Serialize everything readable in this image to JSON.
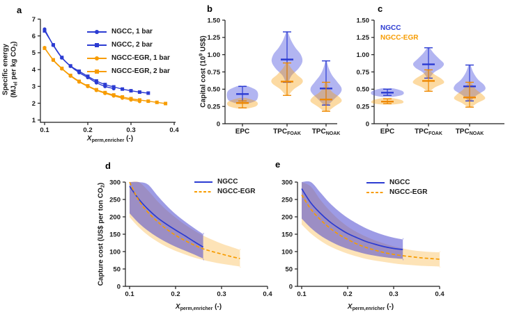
{
  "figure": {
    "kind": "five-panel scientific figure",
    "panel_letters": [
      "a",
      "b",
      "c",
      "d",
      "e"
    ]
  },
  "colors": {
    "ngcc_blue": "#2b3bd2",
    "egr_orange": "#f79c00",
    "orange_whisker": "#ee8800",
    "violin_blue_fill": "rgba(85,92,225,0.45)",
    "violin_orange_fill": "rgba(248,158,10,0.38)",
    "band_blue_fill": "rgba(76,72,208,0.55)",
    "band_orange_fill": "rgba(249,168,30,0.32)",
    "axis": "#1a1a1a"
  },
  "panels": {
    "a": {
      "label": "a"
    },
    "b": {
      "label": "b"
    },
    "c": {
      "label": "c",
      "legend": [
        "NGCC",
        "NGCC-EGR"
      ]
    },
    "d": {
      "label": "d"
    },
    "e": {
      "label": "e"
    }
  },
  "labels": {
    "a_ylabel_line1": [
      [
        "t",
        "Specific energy"
      ]
    ],
    "a_ylabel_line2": [
      [
        "t",
        "(MJ"
      ],
      [
        "s",
        "el"
      ],
      [
        "t",
        " per kg CO"
      ],
      [
        "s",
        "2"
      ],
      [
        "t",
        ")"
      ]
    ],
    "x_perm": [
      [
        "i",
        "X"
      ],
      [
        "s",
        "perm,enricher"
      ],
      [
        "t",
        " (-)"
      ]
    ],
    "b_ylabel": [
      [
        "t",
        "Capital cost (10"
      ],
      [
        "p",
        "9"
      ],
      [
        "t",
        " US$)"
      ]
    ],
    "d_ylabel": [
      [
        "t",
        "Capture cost (US$ per ton CO"
      ],
      [
        "s",
        "2"
      ],
      [
        "t",
        ")"
      ]
    ],
    "cat_epc": [
      [
        "t",
        "EPC"
      ]
    ],
    "cat_tpc_foak": [
      [
        "t",
        "TPC"
      ],
      [
        "s",
        "FOAK"
      ]
    ],
    "cat_tpc_noak": [
      [
        "t",
        "TPC"
      ],
      [
        "s",
        "NOAK"
      ]
    ]
  },
  "chart_data": [
    {
      "panel": "a",
      "type": "line",
      "title": "",
      "xlabel": "X_perm,enricher (-)",
      "ylabel": "Specific energy (MJ_el per kg CO2)",
      "xlim": [
        0.1,
        0.4
      ],
      "ylim": [
        1,
        7
      ],
      "xticks": [
        0.1,
        0.2,
        0.3,
        0.4
      ],
      "xtick_labels": [
        "0.1",
        "0.2",
        "0.3",
        "0.4"
      ],
      "yticks": [
        1,
        2,
        3,
        4,
        5,
        6,
        7
      ],
      "ytick_labels": [
        "1",
        "2",
        "3",
        "4",
        "5",
        "6",
        "7"
      ],
      "legend_position": "top-right-inside",
      "series": [
        {
          "name": "NGCC, 1 bar",
          "color": "ngcc_blue",
          "marker": "circle",
          "x": [
            0.1,
            0.12,
            0.14,
            0.16,
            0.18,
            0.2,
            0.22,
            0.24,
            0.26
          ],
          "y": [
            6.4,
            5.45,
            4.7,
            4.2,
            3.82,
            3.53,
            3.22,
            3.0,
            2.87
          ]
        },
        {
          "name": "NGCC, 2 bar",
          "color": "ngcc_blue",
          "marker": "square",
          "x": [
            0.1,
            0.12,
            0.14,
            0.16,
            0.18,
            0.2,
            0.22,
            0.24,
            0.26,
            0.28,
            0.3,
            0.32,
            0.34
          ],
          "y": [
            6.3,
            5.47,
            4.72,
            4.22,
            3.9,
            3.6,
            3.32,
            3.11,
            2.97,
            2.84,
            2.74,
            2.66,
            2.6
          ]
        },
        {
          "name": "NGCC-EGR, 1 bar",
          "color": "egr_orange",
          "marker": "circle",
          "x": [
            0.1,
            0.12,
            0.14,
            0.16,
            0.18,
            0.2,
            0.22,
            0.24,
            0.26,
            0.28,
            0.3,
            0.32
          ],
          "y": [
            5.3,
            4.56,
            4.05,
            3.62,
            3.27,
            3.0,
            2.77,
            2.59,
            2.44,
            2.31,
            2.2,
            2.11
          ]
        },
        {
          "name": "NGCC-EGR, 2 bar",
          "color": "egr_orange",
          "marker": "square",
          "x": [
            0.1,
            0.12,
            0.14,
            0.16,
            0.18,
            0.2,
            0.22,
            0.24,
            0.26,
            0.28,
            0.3,
            0.32,
            0.34,
            0.36,
            0.38
          ],
          "y": [
            5.27,
            4.58,
            4.07,
            3.65,
            3.3,
            3.03,
            2.8,
            2.63,
            2.49,
            2.37,
            2.27,
            2.19,
            2.12,
            2.05,
            1.98
          ]
        }
      ]
    },
    {
      "panel": "b",
      "type": "violin",
      "title": "",
      "ylabel": "Capital cost (10^9 US$)",
      "ylim": [
        0,
        1.5
      ],
      "yticks": [
        0,
        0.25,
        0.5,
        0.75,
        1.0,
        1.25,
        1.5
      ],
      "ytick_labels": [
        "0",
        "0.25",
        "0.50",
        "0.75",
        "1.00",
        "1.25",
        "1.50"
      ],
      "categories": [
        "EPC",
        "TPC_FOAK",
        "TPC_NOAK"
      ],
      "violins": [
        {
          "category": "EPC",
          "series": "NGCC",
          "whisker_min": 0.33,
          "whisker_max": 0.54,
          "median": 0.43,
          "profile": [
            [
              0.29,
              0.3
            ],
            [
              0.33,
              0.85
            ],
            [
              0.38,
              1.0
            ],
            [
              0.45,
              1.0
            ],
            [
              0.5,
              0.8
            ],
            [
              0.55,
              0.25
            ]
          ]
        },
        {
          "category": "EPC",
          "series": "NGCC-EGR",
          "whisker_min": 0.23,
          "whisker_max": 0.33,
          "median": 0.3,
          "profile": [
            [
              0.22,
              0.3
            ],
            [
              0.25,
              0.85
            ],
            [
              0.29,
              1.0
            ],
            [
              0.33,
              0.85
            ],
            [
              0.37,
              0.25
            ]
          ]
        },
        {
          "category": "TPC_FOAK",
          "series": "NGCC",
          "whisker_min": 0.6,
          "whisker_max": 1.33,
          "median": 0.93,
          "profile": [
            [
              0.6,
              0.08
            ],
            [
              0.7,
              0.3
            ],
            [
              0.8,
              0.75
            ],
            [
              0.9,
              1.0
            ],
            [
              1.0,
              0.9
            ],
            [
              1.1,
              0.55
            ],
            [
              1.2,
              0.28
            ],
            [
              1.33,
              0.05
            ]
          ]
        },
        {
          "category": "TPC_FOAK",
          "series": "NGCC-EGR",
          "whisker_min": 0.41,
          "whisker_max": 0.88,
          "median": 0.61,
          "profile": [
            [
              0.41,
              0.08
            ],
            [
              0.5,
              0.45
            ],
            [
              0.58,
              0.95
            ],
            [
              0.64,
              1.0
            ],
            [
              0.71,
              0.65
            ],
            [
              0.8,
              0.28
            ],
            [
              0.88,
              0.06
            ]
          ]
        },
        {
          "category": "TPC_NOAK",
          "series": "NGCC",
          "whisker_min": 0.27,
          "whisker_max": 0.91,
          "median": 0.51,
          "profile": [
            [
              0.27,
              0.12
            ],
            [
              0.35,
              0.5
            ],
            [
              0.45,
              0.95
            ],
            [
              0.52,
              1.0
            ],
            [
              0.6,
              0.75
            ],
            [
              0.7,
              0.4
            ],
            [
              0.8,
              0.18
            ],
            [
              0.91,
              0.04
            ]
          ]
        },
        {
          "category": "TPC_NOAK",
          "series": "NGCC-EGR",
          "whisker_min": 0.18,
          "whisker_max": 0.6,
          "median": 0.35,
          "profile": [
            [
              0.18,
              0.12
            ],
            [
              0.25,
              0.55
            ],
            [
              0.32,
              1.0
            ],
            [
              0.38,
              0.9
            ],
            [
              0.45,
              0.45
            ],
            [
              0.52,
              0.2
            ],
            [
              0.6,
              0.06
            ]
          ]
        }
      ]
    },
    {
      "panel": "c",
      "type": "violin",
      "title": "",
      "ylabel": "",
      "ylim": [
        0,
        1.5
      ],
      "yticks": [
        0,
        0.25,
        0.5,
        0.75,
        1.0,
        1.25,
        1.5
      ],
      "ytick_labels": [
        "0",
        "0.25",
        "0.50",
        "0.75",
        "1.00",
        "1.25",
        "1.50"
      ],
      "categories": [
        "EPC",
        "TPC_FOAK",
        "TPC_NOAK"
      ],
      "legend": [
        "NGCC",
        "NGCC-EGR"
      ],
      "legend_position": "top-left-inside",
      "violins": [
        {
          "category": "EPC",
          "series": "NGCC",
          "whisker_min": 0.41,
          "whisker_max": 0.5,
          "median": 0.45,
          "profile": [
            [
              0.39,
              0.4
            ],
            [
              0.42,
              1.0
            ],
            [
              0.47,
              1.0
            ],
            [
              0.51,
              0.4
            ]
          ]
        },
        {
          "category": "EPC",
          "series": "NGCC-EGR",
          "whisker_min": 0.29,
          "whisker_max": 0.36,
          "median": 0.32,
          "profile": [
            [
              0.28,
              0.4
            ],
            [
              0.3,
              1.0
            ],
            [
              0.34,
              0.95
            ],
            [
              0.37,
              0.35
            ]
          ]
        },
        {
          "category": "TPC_FOAK",
          "series": "NGCC",
          "whisker_min": 0.66,
          "whisker_max": 1.1,
          "median": 0.86,
          "profile": [
            [
              0.66,
              0.08
            ],
            [
              0.74,
              0.35
            ],
            [
              0.81,
              0.85
            ],
            [
              0.87,
              1.0
            ],
            [
              0.94,
              0.7
            ],
            [
              1.02,
              0.35
            ],
            [
              1.1,
              0.07
            ]
          ]
        },
        {
          "category": "TPC_FOAK",
          "series": "NGCC-EGR",
          "whisker_min": 0.47,
          "whisker_max": 0.78,
          "median": 0.62,
          "profile": [
            [
              0.47,
              0.08
            ],
            [
              0.53,
              0.45
            ],
            [
              0.59,
              1.0
            ],
            [
              0.65,
              0.85
            ],
            [
              0.72,
              0.35
            ],
            [
              0.78,
              0.08
            ]
          ]
        },
        {
          "category": "TPC_NOAK",
          "series": "NGCC",
          "whisker_min": 0.33,
          "whisker_max": 0.85,
          "median": 0.54,
          "profile": [
            [
              0.33,
              0.08
            ],
            [
              0.41,
              0.45
            ],
            [
              0.49,
              1.0
            ],
            [
              0.56,
              0.95
            ],
            [
              0.64,
              0.55
            ],
            [
              0.74,
              0.25
            ],
            [
              0.85,
              0.06
            ]
          ]
        },
        {
          "category": "TPC_NOAK",
          "series": "NGCC-EGR",
          "whisker_min": 0.24,
          "whisker_max": 0.6,
          "median": 0.38,
          "profile": [
            [
              0.24,
              0.1
            ],
            [
              0.3,
              0.5
            ],
            [
              0.36,
              1.0
            ],
            [
              0.42,
              0.85
            ],
            [
              0.5,
              0.4
            ],
            [
              0.6,
              0.08
            ]
          ]
        }
      ]
    },
    {
      "panel": "d",
      "type": "band-line",
      "title": "",
      "xlabel": "X_perm,enricher (-)",
      "ylabel": "Capture cost (US$ per ton CO2)",
      "xlim": [
        0.1,
        0.4
      ],
      "ylim": [
        0,
        300
      ],
      "xticks": [
        0.1,
        0.2,
        0.3,
        0.4
      ],
      "xtick_labels": [
        "0.1",
        "0.2",
        "0.3",
        "0.4"
      ],
      "yticks": [
        0,
        50,
        100,
        150,
        200,
        250,
        300
      ],
      "ytick_labels": [
        "0",
        "50",
        "100",
        "150",
        "200",
        "250",
        "300"
      ],
      "legend_position": "top-right-inside",
      "series": [
        {
          "name": "NGCC",
          "color": "ngcc_blue",
          "style": "solid",
          "x": [
            0.1,
            0.12,
            0.14,
            0.16,
            0.18,
            0.2,
            0.22,
            0.24,
            0.26
          ],
          "median": [
            288,
            251,
            222,
            198,
            179,
            162,
            146,
            129,
            113
          ],
          "upper": [
            300,
            300,
            293,
            262,
            233,
            208,
            187,
            168,
            150
          ],
          "lower": [
            210,
            182,
            160,
            142,
            127,
            114,
            103,
            92,
            80
          ]
        },
        {
          "name": "NGCC-EGR",
          "color": "egr_orange",
          "style": "dashed",
          "x": [
            0.1,
            0.12,
            0.14,
            0.16,
            0.18,
            0.2,
            0.22,
            0.24,
            0.26,
            0.28,
            0.3,
            0.32,
            0.34
          ],
          "median": [
            300,
            247,
            213,
            187,
            165,
            147,
            132,
            119,
            108,
            100,
            93,
            86,
            80
          ],
          "upper": [
            300,
            300,
            276,
            246,
            220,
            198,
            178,
            161,
            146,
            134,
            123,
            114,
            105
          ],
          "lower": [
            199,
            170,
            147,
            129,
            114,
            102,
            92,
            83,
            76,
            70,
            65,
            61,
            57
          ]
        }
      ]
    },
    {
      "panel": "e",
      "type": "band-line",
      "title": "",
      "xlabel": "X_perm,enricher (-)",
      "ylabel": "",
      "xlim": [
        0.1,
        0.4
      ],
      "ylim": [
        0,
        300
      ],
      "xticks": [
        0.1,
        0.2,
        0.3,
        0.4
      ],
      "xtick_labels": [
        "0.1",
        "0.2",
        "0.3",
        "0.4"
      ],
      "yticks": [
        0,
        50,
        100,
        150,
        200,
        250,
        300
      ],
      "ytick_labels": [
        "0",
        "50",
        "100",
        "150",
        "200",
        "250",
        "300"
      ],
      "legend_position": "top-right-inside",
      "series": [
        {
          "name": "NGCC",
          "color": "ngcc_blue",
          "style": "solid",
          "x": [
            0.1,
            0.12,
            0.14,
            0.16,
            0.18,
            0.2,
            0.22,
            0.24,
            0.26,
            0.28,
            0.3,
            0.32
          ],
          "median": [
            281,
            240,
            211,
            187,
            168,
            152,
            140,
            129,
            121,
            114,
            109,
            106
          ],
          "upper": [
            300,
            300,
            271,
            241,
            217,
            197,
            181,
            167,
            156,
            147,
            140,
            135
          ],
          "lower": [
            195,
            168,
            147,
            131,
            118,
            108,
            100,
            93,
            88,
            84,
            81,
            79
          ]
        },
        {
          "name": "NGCC-EGR",
          "color": "egr_orange",
          "style": "dashed",
          "x": [
            0.1,
            0.12,
            0.14,
            0.16,
            0.18,
            0.2,
            0.22,
            0.24,
            0.26,
            0.28,
            0.3,
            0.32,
            0.34,
            0.36,
            0.38,
            0.4
          ],
          "median": [
            263,
            222,
            193,
            169,
            150,
            135,
            122,
            112,
            104,
            97,
            92,
            88,
            85,
            82,
            80,
            78
          ],
          "upper": [
            300,
            287,
            250,
            219,
            193,
            172,
            156,
            143,
            132,
            123,
            115,
            109,
            104,
            101,
            99,
            98
          ],
          "lower": [
            178,
            152,
            132,
            116,
            104,
            94,
            86,
            79,
            74,
            70,
            66,
            63,
            61,
            59,
            58,
            57
          ]
        }
      ]
    }
  ]
}
